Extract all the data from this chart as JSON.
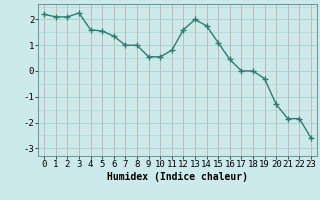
{
  "x": [
    0,
    1,
    2,
    3,
    4,
    5,
    6,
    7,
    8,
    9,
    10,
    11,
    12,
    13,
    14,
    15,
    16,
    17,
    18,
    19,
    20,
    21,
    22,
    23
  ],
  "y": [
    2.2,
    2.1,
    2.1,
    2.25,
    1.6,
    1.55,
    1.35,
    1.0,
    1.0,
    0.55,
    0.55,
    0.8,
    1.6,
    2.0,
    1.75,
    1.1,
    0.45,
    0.0,
    0.0,
    -0.3,
    -1.3,
    -1.85,
    -1.85,
    -2.6
  ],
  "line_color": "#2e7d6e",
  "marker": "+",
  "marker_size": 4,
  "marker_lw": 1.0,
  "bg_color": "#cceaea",
  "grid_color_h": "#a8d4d4",
  "grid_color_v": "#c8a0a0",
  "xlabel": "Humidex (Indice chaleur)",
  "xlim": [
    -0.5,
    23.5
  ],
  "ylim": [
    -3.3,
    2.6
  ],
  "yticks": [
    -3,
    -2,
    -1,
    0,
    1,
    2
  ],
  "xticks": [
    0,
    1,
    2,
    3,
    4,
    5,
    6,
    7,
    8,
    9,
    10,
    11,
    12,
    13,
    14,
    15,
    16,
    17,
    18,
    19,
    20,
    21,
    22,
    23
  ],
  "xlabel_fontsize": 7,
  "tick_fontsize": 6.5,
  "line_width": 1.0
}
